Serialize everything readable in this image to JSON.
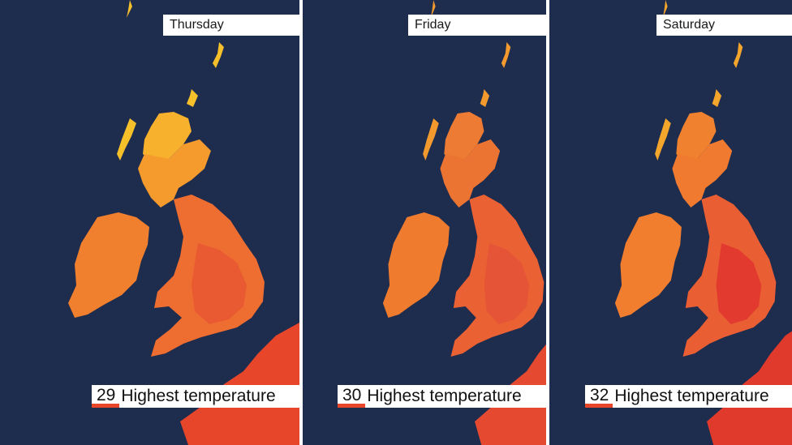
{
  "panels": [
    {
      "day": "Thursday",
      "max_temp": "29",
      "legend_label": "Highest temperature",
      "swatch_color": "#e8462a",
      "colors": {
        "scotland": "#f59a2c",
        "scotland_north": "#f8b12c",
        "isles": "#f5c02a",
        "ireland": "#f07f2e",
        "england": "#ee6d30",
        "england_core": "#e95a32",
        "france": "#e8462a"
      }
    },
    {
      "day": "Friday",
      "max_temp": "30",
      "legend_label": "Highest temperature",
      "swatch_color": "#e8462a",
      "colors": {
        "scotland": "#ec7433",
        "scotland_north": "#ed7b33",
        "isles": "#f29a2e",
        "ireland": "#ef7b2f",
        "england": "#ea6134",
        "england_core": "#e55436",
        "france": "#e54a30"
      }
    },
    {
      "day": "Saturday",
      "max_temp": "32",
      "legend_label": "Highest temperature",
      "swatch_color": "#e8462a",
      "colors": {
        "scotland": "#ef7a30",
        "scotland_north": "#f0822f",
        "isles": "#f3a52c",
        "ireland": "#f07e2e",
        "england": "#ea5e34",
        "england_core": "#e23a2f",
        "france": "#df3a2c"
      }
    }
  ]
}
